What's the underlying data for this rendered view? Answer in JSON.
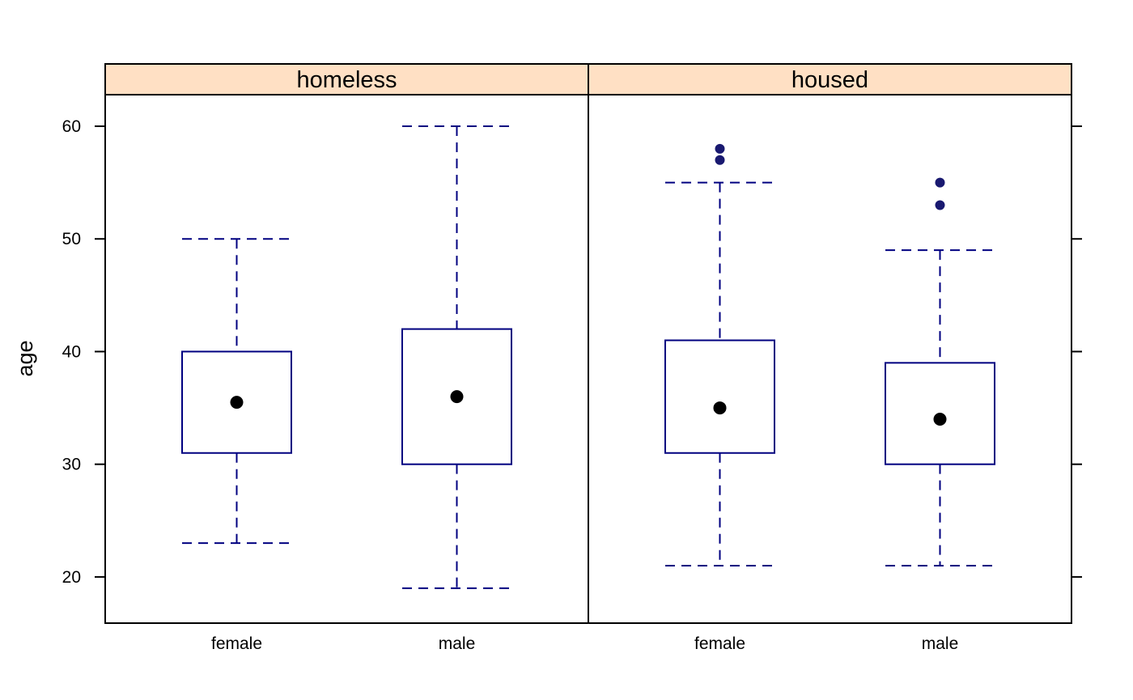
{
  "chart_data": {
    "type": "box",
    "ylabel": "age",
    "yticks": [
      20,
      30,
      40,
      50,
      60
    ],
    "ylim": [
      15.9,
      62.8
    ],
    "categories": [
      "female",
      "male"
    ],
    "panels": [
      {
        "strip": "homeless",
        "boxes": [
          {
            "category": "female",
            "whisker_low": 23,
            "q1": 31,
            "median": 35.5,
            "q3": 40,
            "whisker_high": 50,
            "outliers": []
          },
          {
            "category": "male",
            "whisker_low": 19,
            "q1": 30,
            "median": 36,
            "q3": 42,
            "whisker_high": 60,
            "outliers": []
          }
        ]
      },
      {
        "strip": "housed",
        "boxes": [
          {
            "category": "female",
            "whisker_low": 21,
            "q1": 31,
            "median": 35,
            "q3": 41,
            "whisker_high": 55,
            "outliers": [
              57,
              58
            ]
          },
          {
            "category": "male",
            "whisker_low": 21,
            "q1": 30,
            "median": 34,
            "q3": 39,
            "whisker_high": 49,
            "outliers": [
              53,
              55
            ]
          }
        ]
      }
    ],
    "colors": {
      "strip_background": "#FFE0C4",
      "box_line": "#000080",
      "outlier": "#191970",
      "median_dot": "#000000",
      "frame": "#000000"
    }
  }
}
